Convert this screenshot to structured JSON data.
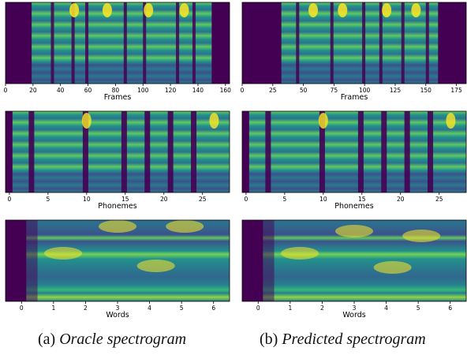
{
  "figure": {
    "columns": [
      {
        "caption_prefix": "(a)",
        "caption_title": "Oracle spectrogram",
        "panels": [
          {
            "xlabel": "Frames",
            "ticks": [
              0,
              20,
              40,
              60,
              80,
              100,
              120,
              140,
              160
            ],
            "xlim": [
              0,
              163
            ]
          },
          {
            "xlabel": "Phonemes",
            "ticks": [
              0,
              5,
              10,
              15,
              20,
              25
            ],
            "xlim": [
              -0.5,
              28.5
            ]
          },
          {
            "xlabel": "Words",
            "ticks": [
              0,
              1,
              2,
              3,
              4,
              5,
              6
            ],
            "xlim": [
              -0.5,
              6.5
            ]
          }
        ]
      },
      {
        "caption_prefix": "(b)",
        "caption_title": "Predicted spectrogram",
        "panels": [
          {
            "xlabel": "Frames",
            "ticks": [
              0,
              25,
              50,
              75,
              100,
              125,
              150,
              175
            ],
            "xlim": [
              0,
              183
            ]
          },
          {
            "xlabel": "Phonemes",
            "ticks": [
              0,
              5,
              10,
              15,
              20,
              25
            ],
            "xlim": [
              -0.5,
              28.5
            ]
          },
          {
            "xlabel": "Words",
            "ticks": [
              0,
              1,
              2,
              3,
              4,
              5,
              6
            ],
            "xlim": [
              -0.5,
              6.5
            ]
          }
        ]
      }
    ],
    "colors": {
      "dark": "#440154",
      "mid": "#21918c",
      "bright": "#fde725"
    }
  }
}
